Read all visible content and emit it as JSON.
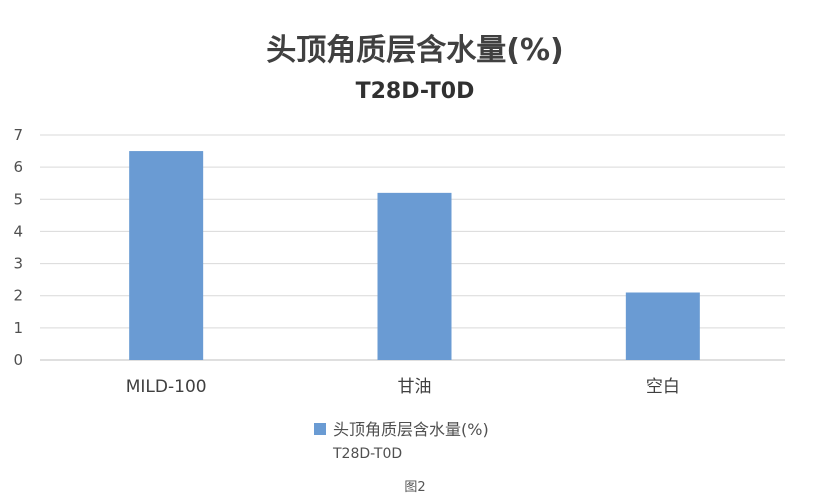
{
  "chart_data": {
    "type": "bar",
    "title": "头顶角质层含水量(%)",
    "subtitle": "T28D-T0D",
    "categories": [
      "MILD-100",
      "甘油",
      "空白"
    ],
    "series": [
      {
        "name": "头顶角质层含水量(%)",
        "values": [
          6.5,
          5.2,
          2.1
        ],
        "color": "#6a9bd3"
      }
    ],
    "legend_sub": "T28D-T0D",
    "yticks": [
      "0",
      "1",
      "2",
      "3",
      "4",
      "5",
      "6",
      "7"
    ],
    "ylim": [
      0,
      7
    ],
    "grid": true,
    "legend": "bottom"
  },
  "caption": "图2"
}
